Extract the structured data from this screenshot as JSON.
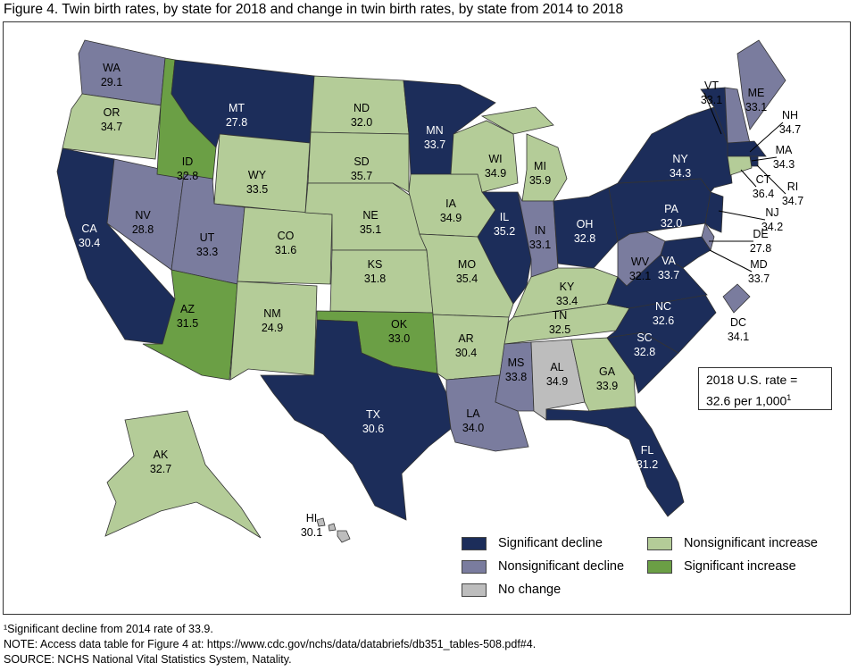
{
  "title": "Figure 4. Twin birth rates, by state for 2018 and change in twin birth rates, by state from 2014 to 2018",
  "categories": {
    "SD": {
      "label": "Significant decline",
      "color": "#1c2d5a"
    },
    "ND": {
      "label": "Nonsignificant decline",
      "color": "#7a7c9e"
    },
    "NC": {
      "label": "No change",
      "color": "#bdbdbd"
    },
    "NI": {
      "label": "Nonsignificant increase",
      "color": "#b4cc98"
    },
    "SI": {
      "label": "Significant increase",
      "color": "#6b9f45"
    }
  },
  "states": [
    {
      "abbr": "WA",
      "rate": "29.1",
      "cat": "ND"
    },
    {
      "abbr": "OR",
      "rate": "34.7",
      "cat": "NI"
    },
    {
      "abbr": "CA",
      "rate": "30.4",
      "cat": "SD"
    },
    {
      "abbr": "NV",
      "rate": "28.8",
      "cat": "ND"
    },
    {
      "abbr": "ID",
      "rate": "32.8",
      "cat": "SI"
    },
    {
      "abbr": "MT",
      "rate": "27.8",
      "cat": "SD"
    },
    {
      "abbr": "WY",
      "rate": "33.5",
      "cat": "NI"
    },
    {
      "abbr": "UT",
      "rate": "33.3",
      "cat": "ND"
    },
    {
      "abbr": "AZ",
      "rate": "31.5",
      "cat": "SI"
    },
    {
      "abbr": "CO",
      "rate": "31.6",
      "cat": "NI"
    },
    {
      "abbr": "NM",
      "rate": "24.9",
      "cat": "NI"
    },
    {
      "abbr": "ND",
      "rate": "32.0",
      "cat": "NI"
    },
    {
      "abbr": "SD",
      "rate": "35.7",
      "cat": "NI"
    },
    {
      "abbr": "NE",
      "rate": "35.1",
      "cat": "NI"
    },
    {
      "abbr": "KS",
      "rate": "31.8",
      "cat": "NI"
    },
    {
      "abbr": "OK",
      "rate": "33.0",
      "cat": "SI"
    },
    {
      "abbr": "TX",
      "rate": "30.6",
      "cat": "SD"
    },
    {
      "abbr": "MN",
      "rate": "33.7",
      "cat": "SD"
    },
    {
      "abbr": "IA",
      "rate": "34.9",
      "cat": "NI"
    },
    {
      "abbr": "MO",
      "rate": "35.4",
      "cat": "NI"
    },
    {
      "abbr": "AR",
      "rate": "30.4",
      "cat": "NI"
    },
    {
      "abbr": "LA",
      "rate": "34.0",
      "cat": "ND"
    },
    {
      "abbr": "WI",
      "rate": "34.9",
      "cat": "NI"
    },
    {
      "abbr": "IL",
      "rate": "35.2",
      "cat": "SD"
    },
    {
      "abbr": "MI",
      "rate": "35.9",
      "cat": "NI"
    },
    {
      "abbr": "IN",
      "rate": "33.1",
      "cat": "ND"
    },
    {
      "abbr": "OH",
      "rate": "32.8",
      "cat": "SD"
    },
    {
      "abbr": "KY",
      "rate": "33.4",
      "cat": "NI"
    },
    {
      "abbr": "TN",
      "rate": "32.5",
      "cat": "NI"
    },
    {
      "abbr": "MS",
      "rate": "33.8",
      "cat": "ND"
    },
    {
      "abbr": "AL",
      "rate": "34.9",
      "cat": "NC"
    },
    {
      "abbr": "GA",
      "rate": "33.9",
      "cat": "NI"
    },
    {
      "abbr": "FL",
      "rate": "31.2",
      "cat": "SD"
    },
    {
      "abbr": "SC",
      "rate": "32.8",
      "cat": "SD"
    },
    {
      "abbr": "NC",
      "rate": "32.6",
      "cat": "SD"
    },
    {
      "abbr": "VA",
      "rate": "33.7",
      "cat": "SD"
    },
    {
      "abbr": "WV",
      "rate": "32.1",
      "cat": "ND"
    },
    {
      "abbr": "PA",
      "rate": "32.0",
      "cat": "SD"
    },
    {
      "abbr": "NY",
      "rate": "34.3",
      "cat": "SD"
    },
    {
      "abbr": "VT",
      "rate": "33.1",
      "cat": "SD"
    },
    {
      "abbr": "ME",
      "rate": "33.1",
      "cat": "ND"
    },
    {
      "abbr": "NH",
      "rate": "34.7",
      "cat": "ND"
    },
    {
      "abbr": "MA",
      "rate": "34.3",
      "cat": "SD"
    },
    {
      "abbr": "RI",
      "rate": "34.7",
      "cat": "SD"
    },
    {
      "abbr": "CT",
      "rate": "36.4",
      "cat": "NI"
    },
    {
      "abbr": "NJ",
      "rate": "34.2",
      "cat": "SD"
    },
    {
      "abbr": "DE",
      "rate": "27.8",
      "cat": "ND"
    },
    {
      "abbr": "MD",
      "rate": "33.7",
      "cat": "SD"
    },
    {
      "abbr": "DC",
      "rate": "34.1",
      "cat": "ND"
    },
    {
      "abbr": "AK",
      "rate": "32.7",
      "cat": "NI"
    },
    {
      "abbr": "HI",
      "rate": "30.1",
      "cat": "NC"
    }
  ],
  "us_rate": {
    "line1": "2018 U.S. rate =",
    "line2": "32.6 per 1,000",
    "footnote_mark": "1"
  },
  "notes": {
    "footnote": "¹Significant decline from 2014 rate of 33.9.",
    "note": "NOTE: Access data table for Figure 4 at: https://www.cdc.gov/nchs/data/databriefs/db351_tables-508.pdf#4.",
    "source": "SOURCE: NCHS National Vital Statistics System, Natality."
  }
}
